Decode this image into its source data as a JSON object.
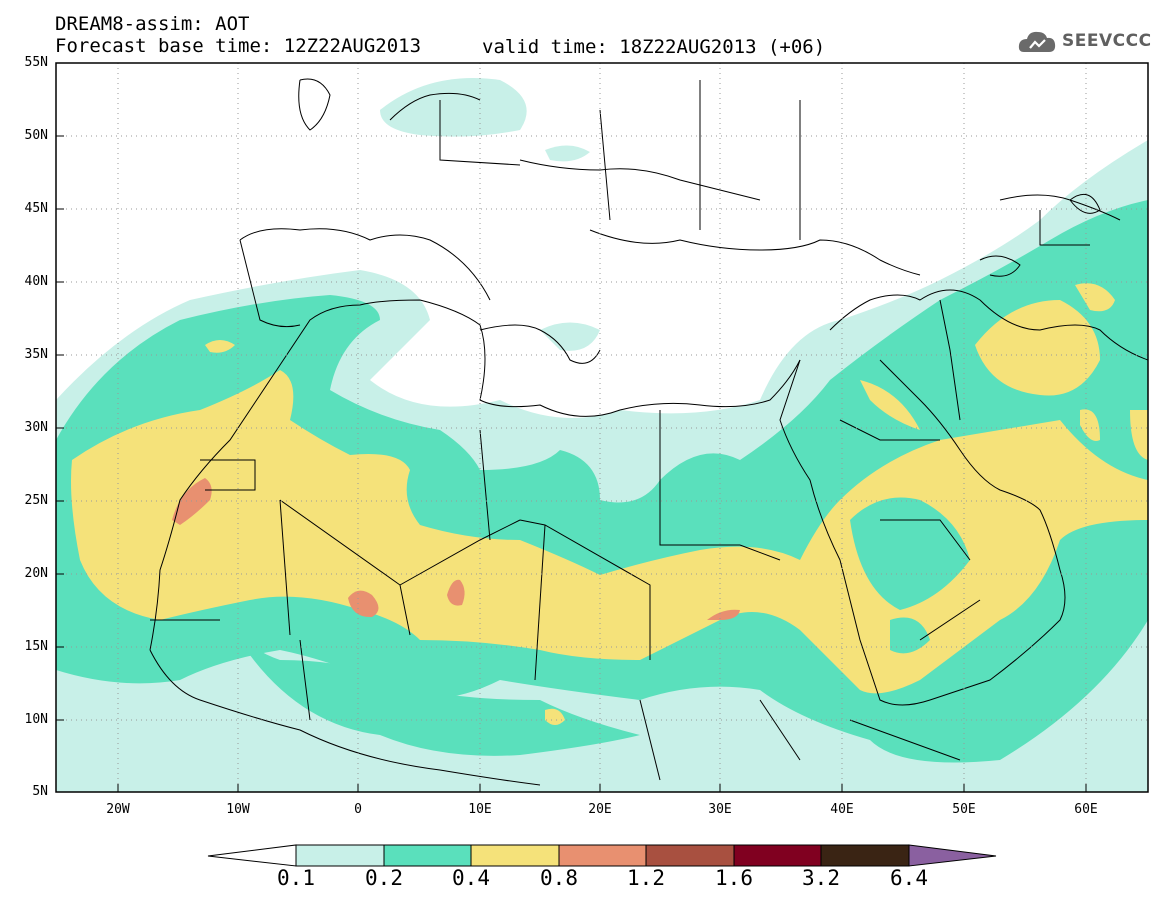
{
  "header": {
    "line1": "DREAM8-assim: AOT",
    "line2": "Forecast base time: 12Z22AUG2013",
    "valid": "valid time: 18Z22AUG2013 (+06)",
    "logo_text": "SEEVCCC"
  },
  "axes": {
    "lat_labels": [
      "55N",
      "50N",
      "45N",
      "40N",
      "35N",
      "30N",
      "25N",
      "20N",
      "15N",
      "10N",
      "5N"
    ],
    "lon_labels": [
      "20W",
      "10W",
      "0",
      "10E",
      "20E",
      "30E",
      "40E",
      "50E",
      "60E"
    ]
  },
  "colorbar": {
    "labels": [
      "0.1",
      "0.2",
      "0.4",
      "0.8",
      "1.2",
      "1.6",
      "3.2",
      "6.4"
    ],
    "colors": [
      "#ffffff",
      "#c8f0e8",
      "#5ae0bc",
      "#f5e27a",
      "#e89070",
      "#a85040",
      "#800020",
      "#3a2414",
      "#8a60a0"
    ]
  },
  "map": {
    "lon_range": [
      -25,
      65
    ],
    "lat_range": [
      5,
      55
    ],
    "fields": {
      "aot_0_1": "#c8f0e8",
      "aot_0_2": "#5ae0bc",
      "aot_0_4": "#f5e27a",
      "aot_0_8": "#e89070"
    }
  }
}
